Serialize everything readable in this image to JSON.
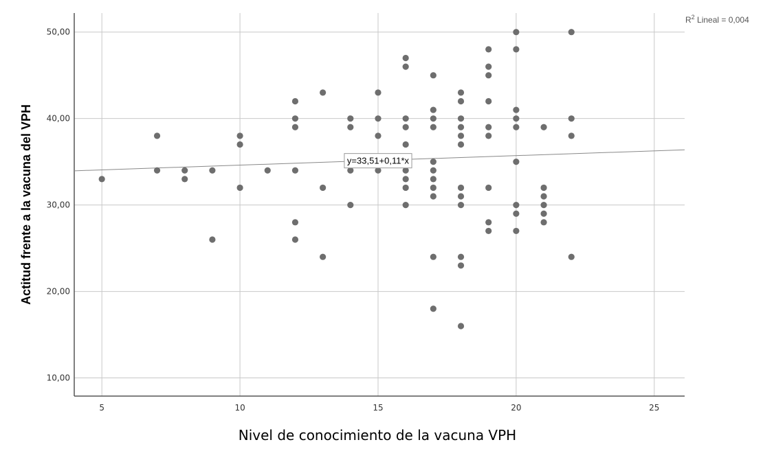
{
  "chart_data": {
    "type": "scatter",
    "title": "",
    "xlabel": "Nivel de conocimiento de la vacuna VPH",
    "ylabel": "Actitud frente a la vacuna del VPH",
    "xlim": [
      4,
      26.1
    ],
    "ylim": [
      7.9,
      52.2
    ],
    "x_ticks": [
      5,
      10,
      15,
      20,
      25
    ],
    "x_tick_labels": [
      "5",
      "10",
      "15",
      "20",
      "25"
    ],
    "y_ticks": [
      10,
      20,
      30,
      40,
      50
    ],
    "y_tick_labels": [
      "10,00",
      "20,00",
      "30,00",
      "40,00",
      "50,00"
    ],
    "grid": true,
    "marker_color": "#6e6e6e",
    "fit_line": {
      "intercept": 33.51,
      "slope": 0.11,
      "color": "#888888",
      "equation_label": "y=33,51+0,11*x",
      "equation_label_at_x": 15
    },
    "r2": {
      "prefix": "R",
      "superscript": "2",
      "text": " Lineal = 0,004"
    },
    "points": [
      [
        5,
        33
      ],
      [
        7,
        38
      ],
      [
        7,
        34
      ],
      [
        8,
        34
      ],
      [
        8,
        33
      ],
      [
        9,
        34
      ],
      [
        9,
        26
      ],
      [
        10,
        38
      ],
      [
        10,
        37
      ],
      [
        10,
        32
      ],
      [
        11,
        34
      ],
      [
        12,
        42
      ],
      [
        12,
        40
      ],
      [
        12,
        39
      ],
      [
        12,
        34
      ],
      [
        12,
        28
      ],
      [
        12,
        26
      ],
      [
        13,
        43
      ],
      [
        13,
        32
      ],
      [
        13,
        24
      ],
      [
        14,
        40
      ],
      [
        14,
        39
      ],
      [
        14,
        34
      ],
      [
        14,
        30
      ],
      [
        15,
        43
      ],
      [
        15,
        40
      ],
      [
        15,
        38
      ],
      [
        15,
        34
      ],
      [
        16,
        47
      ],
      [
        16,
        46
      ],
      [
        16,
        40
      ],
      [
        16,
        39
      ],
      [
        16,
        37
      ],
      [
        16,
        35
      ],
      [
        16,
        34
      ],
      [
        16,
        33
      ],
      [
        16,
        32
      ],
      [
        16,
        30
      ],
      [
        17,
        45
      ],
      [
        17,
        41
      ],
      [
        17,
        40
      ],
      [
        17,
        39
      ],
      [
        17,
        35
      ],
      [
        17,
        34
      ],
      [
        17,
        33
      ],
      [
        17,
        32
      ],
      [
        17,
        31
      ],
      [
        17,
        24
      ],
      [
        17,
        18
      ],
      [
        18,
        43
      ],
      [
        18,
        42
      ],
      [
        18,
        40
      ],
      [
        18,
        39
      ],
      [
        18,
        38
      ],
      [
        18,
        37
      ],
      [
        18,
        32
      ],
      [
        18,
        31
      ],
      [
        18,
        30
      ],
      [
        18,
        24
      ],
      [
        18,
        23
      ],
      [
        18,
        16
      ],
      [
        19,
        48
      ],
      [
        19,
        46
      ],
      [
        19,
        45
      ],
      [
        19,
        42
      ],
      [
        19,
        39
      ],
      [
        19,
        38
      ],
      [
        19,
        32
      ],
      [
        19,
        28
      ],
      [
        19,
        27
      ],
      [
        20,
        50
      ],
      [
        20,
        48
      ],
      [
        20,
        41
      ],
      [
        20,
        40
      ],
      [
        20,
        39
      ],
      [
        20,
        35
      ],
      [
        20,
        30
      ],
      [
        20,
        29
      ],
      [
        20,
        27
      ],
      [
        21,
        39
      ],
      [
        21,
        32
      ],
      [
        21,
        31
      ],
      [
        21,
        30
      ],
      [
        21,
        29
      ],
      [
        21,
        28
      ],
      [
        22,
        50
      ],
      [
        22,
        40
      ],
      [
        22,
        38
      ],
      [
        22,
        24
      ]
    ]
  }
}
